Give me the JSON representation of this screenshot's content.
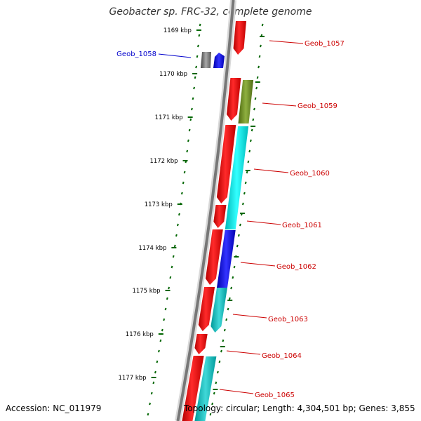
{
  "title": "Geobacter sp. FRC-32, complete genome",
  "footer": {
    "accession": "Accession: NC_011979",
    "topology": "Topology: circular; Length: 4,304,501 bp; Genes: 3,855"
  },
  "ticks": [
    {
      "label": "1169 kbp"
    },
    {
      "label": "1170 kbp"
    },
    {
      "label": "1171 kbp"
    },
    {
      "label": "1172 kbp"
    },
    {
      "label": "1173 kbp"
    },
    {
      "label": "1174 kbp"
    },
    {
      "label": "1175 kbp"
    },
    {
      "label": "1176 kbp"
    },
    {
      "label": "1177 kbp"
    }
  ],
  "genes": [
    {
      "name": "Geob_1057",
      "color": "#cc0000"
    },
    {
      "name": "Geob_1058",
      "color": "#0000cc"
    },
    {
      "name": "Geob_1059",
      "color": "#cc0000"
    },
    {
      "name": "Geob_1060",
      "color": "#cc0000"
    },
    {
      "name": "Geob_1061",
      "color": "#cc0000"
    },
    {
      "name": "Geob_1062",
      "color": "#cc0000"
    },
    {
      "name": "Geob_1063",
      "color": "#cc0000"
    },
    {
      "name": "Geob_1064",
      "color": "#cc0000"
    },
    {
      "name": "Geob_1065",
      "color": "#cc0000"
    }
  ],
  "colors": {
    "backbone": "#777777",
    "tick": "#006600",
    "cds": "#ff0000",
    "cog_olive": "#6b8e23",
    "cog_cyan": "#00e5e5",
    "cog_blue": "#0000ff",
    "cog_gray": "#666666",
    "reverse_cds": "#0000ff"
  }
}
